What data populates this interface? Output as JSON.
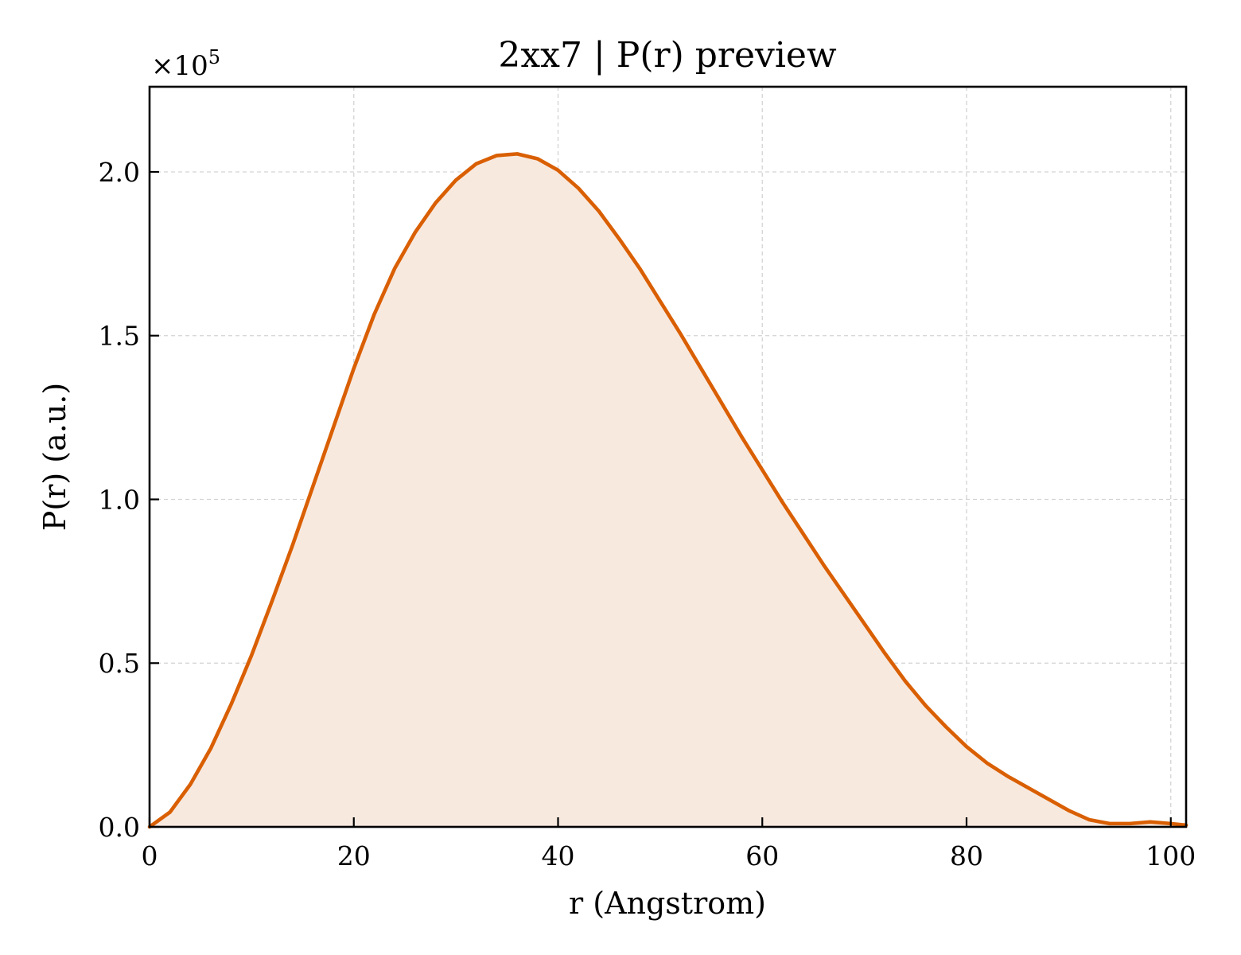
{
  "chart_data": {
    "type": "area",
    "title": "2xx7 | P(r) preview",
    "xlabel": "r (Angstrom)",
    "ylabel": "P(r) (a.u.)",
    "y_multiplier_base": "×10",
    "y_multiplier_exponent": "5",
    "xlim": [
      0,
      101.5
    ],
    "ylim": [
      0,
      2.26
    ],
    "x_scale": 100000,
    "grid": true,
    "x_ticks": [
      0,
      20,
      40,
      60,
      80,
      100
    ],
    "x_tick_labels": [
      "0",
      "20",
      "40",
      "60",
      "80",
      "100"
    ],
    "y_ticks": [
      0.0,
      0.5,
      1.0,
      1.5,
      2.0
    ],
    "y_tick_labels": [
      "0.0",
      "0.5",
      "1.0",
      "1.5",
      "2.0"
    ],
    "colors": {
      "line": "#d95f02",
      "fill": "#f8e9df",
      "grid": "#d3d3d3"
    },
    "series": [
      {
        "x": [
          0,
          2,
          4,
          6,
          8,
          10,
          12,
          14,
          16,
          18,
          20,
          22,
          24,
          26,
          28,
          30,
          32,
          34,
          36,
          38,
          40,
          42,
          44,
          46,
          48,
          50,
          52,
          54,
          56,
          58,
          60,
          62,
          64,
          66,
          68,
          70,
          72,
          74,
          76,
          78,
          80,
          82,
          84,
          86,
          88,
          90,
          92,
          94,
          96,
          98,
          100,
          101.5
        ],
        "y": [
          0.0,
          0.045,
          0.13,
          0.24,
          0.375,
          0.525,
          0.69,
          0.86,
          1.04,
          1.22,
          1.4,
          1.565,
          1.705,
          1.815,
          1.905,
          1.975,
          2.025,
          2.05,
          2.055,
          2.04,
          2.005,
          1.95,
          1.88,
          1.795,
          1.705,
          1.605,
          1.505,
          1.4,
          1.295,
          1.19,
          1.09,
          0.99,
          0.895,
          0.8,
          0.71,
          0.62,
          0.53,
          0.445,
          0.37,
          0.305,
          0.245,
          0.195,
          0.155,
          0.12,
          0.085,
          0.05,
          0.022,
          0.01,
          0.01,
          0.015,
          0.01,
          0.005
        ]
      }
    ]
  }
}
